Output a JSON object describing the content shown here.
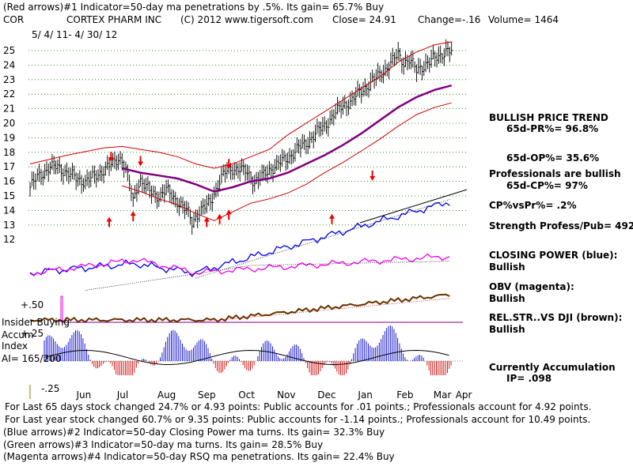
{
  "header": {
    "line1": "(Red arrows)#1 Indicator=50-day ma penetrations by .5%.  Its gain= 65.7% Buy",
    "ticker": "COR",
    "company": "CORTEX PHARM INC",
    "copyright": "(C) 2012 www.tigersoft.com",
    "close": "Close=  24.91",
    "change": "Change=-.16",
    "volume": "Volume= 1464",
    "date_range": "5/ 4/ 11-  4/ 30/ 12"
  },
  "right_panel": {
    "trend_title": "BULLISH PRICE TREND",
    "pr": "65d-PR%= 96.8%",
    "op": "65d-OP%= 35.6%",
    "prof": "Professionals are bullish",
    "cp": "65d-CP%= 97%",
    "cpvspr": "CP%vsPr%=  .2%",
    "strength": "Strength Profess/Pub= 492",
    "closing_power": "CLOSING POWER (blue):",
    "closing_power_val": "Bullish",
    "obv": "OBV (magenta):",
    "obv_val": "Bullish",
    "relstr": "REL.STR..VS DJI (brown):",
    "relstr_val": "Bullish",
    "accum": "Currently Accumulation",
    "ip": "IP=  .098"
  },
  "lower_left": {
    "plus50": "+.50",
    "insider1": "Insider Buying",
    "insider2": "Accum",
    "insider3": "Index",
    "ai": "AI= 165/200",
    "plus25": "+.25",
    "minus25": "-.25"
  },
  "footer": {
    "line1": "For Last 65 days stock changed  24.7% or  4.93 points:  Public accounts for  .01 points.;  Professionals account for  4.92 points.",
    "line2": "For Last year stock changed  60.7% or  9.35 points:  Public accounts for -1.14 points.;  Professionals account for  10.49 points.",
    "line3": "(Blue arrows)#2 Indicator=50-day Closing Power ma turns.  Its gain= 32.3% Buy",
    "line4": "(Green arrows)#3 Indicator=50-day ma turns.  Its gain= 28.5% Buy",
    "line5": "(Magenta arrows)#4 Indicator=50-day RSQ ma penetrations.  Its gain= 22.4% Buy"
  },
  "colors": {
    "price": "#000000",
    "band": "#cc0000",
    "ma": "#800080",
    "closing_power": "#0000ee",
    "obv": "#ee00ee",
    "relstr": "#663300",
    "grid": "#007700",
    "accum": "#0000cc",
    "distrib": "#cc0000",
    "arrow": "#ee0000"
  },
  "chart_data": {
    "type": "line",
    "title": "COR  CORTEX PHARM INC  5/4/11 - 4/30/12",
    "y_ticks": [
      25,
      24,
      23,
      22,
      21,
      20,
      19,
      18,
      17,
      16,
      15,
      14,
      13,
      12
    ],
    "ylim": [
      12,
      25
    ],
    "x_months": [
      "Jun",
      "Jul",
      "Aug",
      "Sep",
      "Oct",
      "Nov",
      "Dec",
      "Jan",
      "Feb",
      "Mar",
      "Apr"
    ],
    "close_points": [
      [
        0,
        15.6
      ],
      [
        5,
        16.4
      ],
      [
        10,
        16.9
      ],
      [
        15,
        17.0
      ],
      [
        20,
        16.6
      ],
      [
        25,
        16.2
      ],
      [
        30,
        16.0
      ],
      [
        35,
        16.3
      ],
      [
        40,
        16.8
      ],
      [
        45,
        17.2
      ],
      [
        48,
        17.6
      ],
      [
        50,
        17.5
      ],
      [
        52,
        16.8
      ],
      [
        54,
        15.8
      ],
      [
        56,
        14.6
      ],
      [
        58,
        15.6
      ],
      [
        60,
        16.1
      ],
      [
        63,
        15.6
      ],
      [
        66,
        15.2
      ],
      [
        70,
        15.0
      ],
      [
        74,
        15.4
      ],
      [
        78,
        14.9
      ],
      [
        82,
        14.4
      ],
      [
        86,
        13.8
      ],
      [
        88,
        13.2
      ],
      [
        90,
        13.6
      ],
      [
        92,
        13.9
      ],
      [
        95,
        14.2
      ],
      [
        98,
        14.6
      ],
      [
        100,
        15.2
      ],
      [
        103,
        16.0
      ],
      [
        106,
        16.6
      ],
      [
        110,
        16.9
      ],
      [
        114,
        16.8
      ],
      [
        118,
        16.6
      ],
      [
        122,
        16.0
      ],
      [
        126,
        16.3
      ],
      [
        130,
        16.8
      ],
      [
        135,
        17.2
      ],
      [
        140,
        17.6
      ],
      [
        145,
        18.2
      ],
      [
        150,
        18.6
      ],
      [
        155,
        19.3
      ],
      [
        160,
        19.8
      ],
      [
        165,
        20.6
      ],
      [
        170,
        21.2
      ],
      [
        175,
        21.6
      ],
      [
        180,
        22.2
      ],
      [
        185,
        22.8
      ],
      [
        190,
        23.3
      ],
      [
        195,
        24.0
      ],
      [
        200,
        24.7
      ],
      [
        203,
        24.2
      ],
      [
        206,
        24.4
      ],
      [
        210,
        23.6
      ],
      [
        214,
        24.0
      ],
      [
        218,
        24.3
      ],
      [
        222,
        24.6
      ],
      [
        226,
        25.0
      ],
      [
        229,
        24.9
      ]
    ],
    "ma50_points": [
      [
        50,
        16.9
      ],
      [
        60,
        16.6
      ],
      [
        70,
        16.4
      ],
      [
        80,
        16.2
      ],
      [
        90,
        15.8
      ],
      [
        100,
        15.3
      ],
      [
        110,
        15.6
      ],
      [
        120,
        16.0
      ],
      [
        130,
        16.2
      ],
      [
        140,
        16.6
      ],
      [
        150,
        17.2
      ],
      [
        160,
        17.8
      ],
      [
        170,
        18.5
      ],
      [
        180,
        19.3
      ],
      [
        190,
        20.2
      ],
      [
        200,
        21.1
      ],
      [
        210,
        21.8
      ],
      [
        220,
        22.3
      ],
      [
        229,
        22.6
      ]
    ],
    "upper_band_points": [
      [
        0,
        17.2
      ],
      [
        20,
        17.8
      ],
      [
        40,
        18.3
      ],
      [
        50,
        18.4
      ],
      [
        60,
        18.2
      ],
      [
        70,
        18.0
      ],
      [
        80,
        17.7
      ],
      [
        90,
        17.2
      ],
      [
        100,
        16.9
      ],
      [
        110,
        17.2
      ],
      [
        120,
        17.7
      ],
      [
        130,
        18.2
      ],
      [
        140,
        19.2
      ],
      [
        150,
        20.0
      ],
      [
        160,
        20.8
      ],
      [
        170,
        21.6
      ],
      [
        180,
        22.4
      ],
      [
        190,
        23.2
      ],
      [
        200,
        24.2
      ],
      [
        210,
        24.9
      ],
      [
        220,
        25.4
      ],
      [
        229,
        25.6
      ]
    ],
    "lower_band_points": [
      [
        50,
        15.7
      ],
      [
        60,
        15.3
      ],
      [
        70,
        14.8
      ],
      [
        80,
        14.4
      ],
      [
        90,
        13.8
      ],
      [
        100,
        13.3
      ],
      [
        110,
        13.9
      ],
      [
        120,
        14.5
      ],
      [
        130,
        14.8
      ],
      [
        140,
        15.2
      ],
      [
        150,
        15.8
      ],
      [
        160,
        16.6
      ],
      [
        170,
        17.3
      ],
      [
        180,
        18.1
      ],
      [
        190,
        18.9
      ],
      [
        200,
        19.8
      ],
      [
        210,
        20.6
      ],
      [
        220,
        21.1
      ],
      [
        229,
        21.4
      ]
    ],
    "red_arrows_down": [
      [
        44,
        17.5
      ],
      [
        60,
        17.2
      ],
      [
        108,
        17.0
      ],
      [
        186,
        16.2
      ]
    ],
    "red_arrows_up": [
      [
        43,
        13.4
      ],
      [
        56,
        13.8
      ],
      [
        96,
        13.4
      ],
      [
        103,
        13.6
      ],
      [
        108,
        13.9
      ],
      [
        164,
        13.6
      ]
    ],
    "accumulation_index": {
      "plus": 0.5,
      "mid": 0.25,
      "minus": -0.25,
      "current_ip": 0.098
    }
  }
}
